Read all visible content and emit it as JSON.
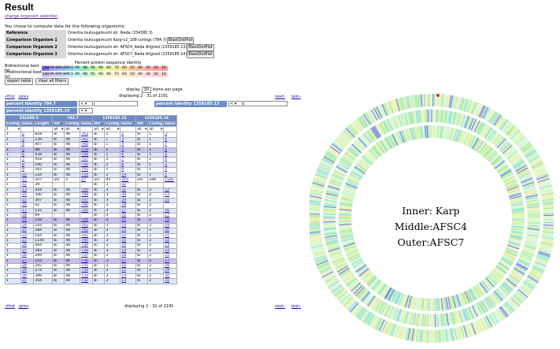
{
  "page": {
    "title": "Result",
    "change_link": "change organism selection",
    "intro": "You chose to compute data for the following organisms:"
  },
  "organisms": [
    {
      "label": "Reference",
      "name": "Orientia tsutsugamushi str. Ikeda (334380.3)",
      "button": ""
    },
    {
      "label": "Comparison Organism 1",
      "name": "Orientia tsutsugamushi Karp-v2_108 contigs (784.7)",
      "button": "BlastDotPlot"
    },
    {
      "label": "Comparison Organism 2",
      "name": "Orientia tsutsugamushi str. AFSC4_Ikeda Aligned (1359185.13)",
      "button": "BlastDotPlot"
    },
    {
      "label": "Comparison Organism 3",
      "name": "Orientia tsutsugamushi str. AFSC7_Ikeda Aligned (1359185.14)",
      "button": "BlastDotPlot"
    }
  ],
  "identity_legend": {
    "caption": "Percent protein sequence identity",
    "bidirectional_label": "Bidirectional best hit",
    "unidirectional_label": "Unidirectional best hit",
    "values": [
      "100",
      "99.9",
      "99.8",
      "99.5",
      "99",
      "98",
      "95",
      "90",
      "80",
      "70",
      "60",
      "50",
      "40",
      "30",
      "20",
      "10"
    ],
    "bi_colors": [
      "#7b74e6",
      "#a8a4f0",
      "#9db8f4",
      "#8fd0f0",
      "#8ee8e0",
      "#90ecb8",
      "#b8f0a0",
      "#d8f4a0",
      "#eef4a0",
      "#f8eca0",
      "#f8dc9c",
      "#f8cc98",
      "#f8c0a4",
      "#f8b4b4",
      "#f8a8a8",
      "#f4a0a0"
    ],
    "uni_colors": [
      "#c4c0f4",
      "#d4d2f6",
      "#cddcf8",
      "#c8e8f8",
      "#c8f4f0",
      "#c8f4dc",
      "#dcf6cc",
      "#ecf8cc",
      "#f6f8cc",
      "#fbf4cc",
      "#fbeccc",
      "#fbe4c8",
      "#fbe0d4",
      "#fbdcdc",
      "#fbd4d4",
      "#f8d0d0"
    ]
  },
  "buttons": {
    "export": "export table",
    "clear": "clear all filters"
  },
  "paging": {
    "display_label": "display",
    "per_page_value": "30",
    "per_page_suffix": "items per page",
    "displaying_text": "displaying 2 - 31 of 2191",
    "first": "«first",
    "prev": "‹prev",
    "next": "next›",
    "last": "last»"
  },
  "filters": {
    "f1_label": "percent identity 784.7",
    "f2_label": "percent identity 1359185.13",
    "f3_label": "percent identity 1359185.14",
    "op_value": "<"
  },
  "table": {
    "groups": [
      "334380.3",
      "784.7",
      "1359185.13",
      "1359185.14"
    ],
    "columns": [
      "Contig",
      "Gene",
      "Length",
      "Hit",
      "Contig",
      "Gene",
      "Hit",
      "Contig",
      "Gene",
      "Hit",
      "Contig",
      "Gene"
    ],
    "filter_row": [
      "1",
      "",
      "",
      "all",
      "all",
      "",
      "all",
      "all",
      "",
      "all",
      "all",
      ""
    ],
    "rows": [
      [
        "1",
        "2",
        "818",
        "bi",
        "46",
        "763",
        "bi",
        "1",
        "2",
        "bi",
        "1",
        "3"
      ],
      [
        "1",
        "3",
        "139",
        "bi",
        "46",
        "761",
        "bi",
        "1",
        "3",
        "bi",
        "1",
        "6"
      ],
      [
        "1",
        "4",
        "407",
        "bi",
        "46",
        "760",
        "bi",
        "1",
        "4",
        "bi",
        "1",
        "7"
      ],
      [
        "1",
        "5",
        "98",
        "bi",
        "46",
        "759",
        "bi",
        "1",
        "5",
        "bi",
        "1",
        "6"
      ],
      [
        "1",
        "6",
        "434",
        "bi",
        "46",
        "758",
        "bi",
        "1",
        "6",
        "bi",
        "1",
        "5"
      ],
      [
        "1",
        "7",
        "418",
        "bi",
        "46",
        "757",
        "bi",
        "2",
        "7",
        "bi",
        "1",
        "4"
      ],
      [
        "1",
        "8",
        "190",
        "bi",
        "46",
        "756",
        "bi",
        "2",
        "8",
        "bi",
        "1",
        "3"
      ],
      [
        "1",
        "9",
        "262",
        "bi",
        "46",
        "755",
        "bi",
        "2",
        "9",
        "bi",
        "1",
        "2"
      ],
      [
        "1",
        "10",
        "234",
        "bi",
        "46",
        "754",
        "bi",
        "2",
        "10",
        "bi",
        "1",
        "1"
      ],
      [
        "1",
        "11",
        "207",
        "uni",
        "5",
        "27",
        "uni",
        "95",
        "315",
        "uni",
        "246",
        "1185"
      ],
      [
        "1",
        "12",
        "39",
        "-",
        "",
        "",
        "bi",
        "3",
        "32",
        "-",
        "",
        ""
      ],
      [
        "1",
        "13",
        "354",
        "bi",
        "46",
        "749",
        "bi",
        "3",
        "31",
        "bi",
        "2",
        "12"
      ],
      [
        "1",
        "14",
        "340",
        "bi",
        "46",
        "748",
        "bi",
        "3",
        "30",
        "bi",
        "2",
        "13"
      ],
      [
        "1",
        "15",
        "307",
        "bi",
        "46",
        "747",
        "bi",
        "3",
        "29",
        "bi",
        "2",
        "15"
      ],
      [
        "1",
        "16",
        "42",
        "bi",
        "46",
        "746",
        "bi",
        "3",
        "28",
        "bi",
        "2",
        ""
      ],
      [
        "1",
        "17",
        "122",
        "bi",
        "46",
        "745",
        "bi",
        "3",
        "27",
        "bi",
        "2",
        "16"
      ],
      [
        "1",
        "18",
        "69",
        "-",
        "",
        "",
        "bi",
        "3",
        "26",
        "bi",
        "2",
        "17"
      ],
      [
        "1",
        "19",
        "158",
        "bi",
        "46",
        "744",
        "bi",
        "3",
        "25",
        "bi",
        "2",
        "18"
      ],
      [
        "1",
        "20",
        "216",
        "bi",
        "46",
        "743",
        "bi",
        "3",
        "24",
        "bi",
        "2",
        "19"
      ],
      [
        "1",
        "21",
        "284",
        "bi",
        "46",
        "742",
        "bi",
        "3",
        "23",
        "bi",
        "2",
        "20"
      ],
      [
        "1",
        "22",
        "164",
        "bi",
        "46",
        "741",
        "bi",
        "3",
        "22",
        "bi",
        "2",
        "21"
      ],
      [
        "1",
        "23",
        "1140",
        "bi",
        "46",
        "740",
        "bi",
        "3",
        "21",
        "bi",
        "2",
        "22"
      ],
      [
        "1",
        "24",
        "404",
        "bi",
        "46",
        "739",
        "bi",
        "3",
        "20",
        "bi",
        "2",
        "23"
      ],
      [
        "1",
        "25",
        "383",
        "bi",
        "46",
        "738",
        "bi",
        "3",
        "19",
        "bi",
        "2",
        "24"
      ],
      [
        "1",
        "26",
        "299",
        "bi",
        "46",
        "737",
        "bi",
        "3",
        "18",
        "bi",
        "2",
        "25"
      ],
      [
        "1",
        "27",
        "103",
        "bi",
        "46",
        "736",
        "bi",
        "3",
        "17",
        "bi",
        "2",
        "27"
      ],
      [
        "1",
        "28",
        "292",
        "bi",
        "46",
        "735",
        "bi",
        "3",
        "16",
        "bi",
        "2",
        "28"
      ],
      [
        "1",
        "29",
        "274",
        "bi",
        "46",
        "734",
        "bi",
        "3",
        "15",
        "bi",
        "2",
        "29"
      ],
      [
        "1",
        "30",
        "399",
        "bi",
        "46",
        "733",
        "bi",
        "3",
        "14",
        "bi",
        "2",
        "30"
      ],
      [
        "1",
        "31",
        "354",
        "bi",
        "46",
        "732",
        "bi",
        "3",
        "13",
        "bi",
        "2",
        "31"
      ]
    ],
    "row_shades": [
      "r1",
      "r2",
      "r1",
      "rp",
      "r2",
      "r1",
      "r2",
      "r1",
      "r2",
      "r1",
      "r1",
      "r2",
      "r1",
      "r2",
      "r1",
      "r2",
      "r1",
      "rp",
      "r1",
      "r2",
      "r1",
      "r2",
      "r1",
      "r2",
      "r1",
      "rp",
      "r1",
      "r2",
      "r1",
      "r2"
    ]
  },
  "circle_plot": {
    "label_lines": [
      "Inner: Karp",
      "Middle:AFSC4",
      "Outer:AFSC7"
    ],
    "ring_palette": [
      "#b8f0a0",
      "#90ecb8",
      "#8ee8e0",
      "#8fd0f0",
      "#d8f4a0",
      "#eef4a0",
      "#f8eca0",
      "#7b74e6",
      "#a8e890",
      "#c8f4dc"
    ],
    "marker_color": "#e03010"
  }
}
